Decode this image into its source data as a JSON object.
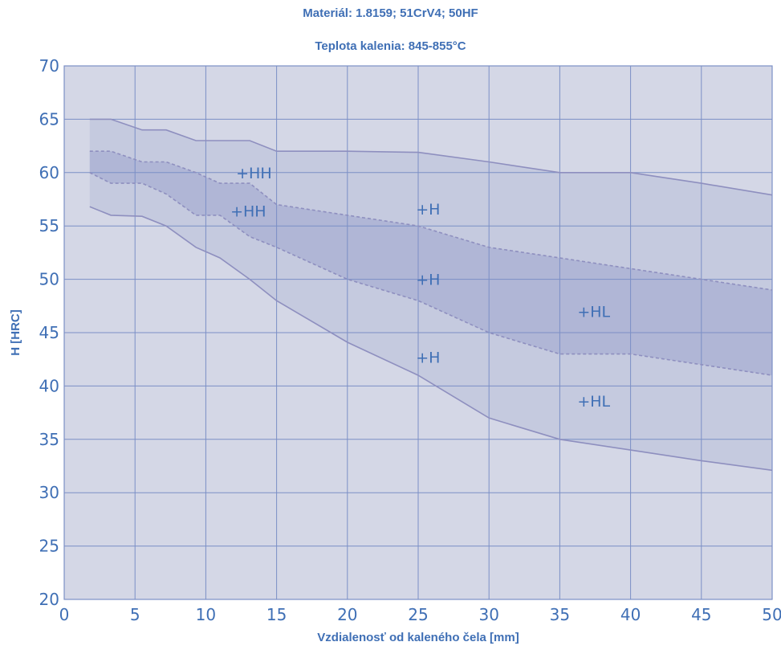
{
  "chart_data": {
    "type": "area",
    "title": "Materiál: 1.8159; 51CrV4; 50HF",
    "subtitle": "Teplota kalenia: 845-855°C",
    "xlabel": "Vzdialenosť od kaleného čela [mm]",
    "ylabel": "H [HRC]",
    "xlim": [
      0,
      50
    ],
    "ylim": [
      20,
      70
    ],
    "xticks": [
      0,
      5,
      10,
      15,
      20,
      25,
      30,
      35,
      40,
      45,
      50
    ],
    "yticks": [
      20,
      25,
      30,
      35,
      40,
      45,
      50,
      55,
      60,
      65,
      70
    ],
    "grid": true,
    "colors": {
      "background": "#d4d7e6",
      "band_light": "#c5cadf",
      "band_dark": "#b0b6d6",
      "grid": "#7b8fc6",
      "line": "#8e8fbf",
      "text": "#3f6fb5"
    },
    "series": [
      {
        "name": "",
        "x": [
          1.8,
          3.3,
          5.5,
          7.2,
          9.3,
          11.0,
          13.1,
          15.0,
          20.0,
          25.0,
          30.0,
          35.0,
          40.0,
          45.0,
          50.0
        ],
        "y": [
          65.0,
          65.0,
          64.0,
          64.0,
          63.0,
          63.0,
          63.0,
          62.0,
          62.0,
          61.9,
          61.0,
          60.0,
          60.0,
          59.0,
          57.9
        ],
        "style": "solid"
      },
      {
        "name": "",
        "x": [
          1.8,
          3.3,
          5.5,
          7.2,
          9.3,
          11.0,
          13.1,
          15.0,
          20.0,
          25.0,
          30.0,
          35.0,
          40.0,
          45.0,
          50.0
        ],
        "y": [
          62.0,
          62.0,
          61.0,
          61.0,
          60.0,
          59.0,
          59.0,
          57.0,
          56.0,
          55.0,
          53.0,
          52.0,
          51.0,
          50.0,
          49.0
        ],
        "style": "dashed"
      },
      {
        "name": "",
        "x": [
          1.8,
          3.3,
          5.5,
          7.2,
          9.3,
          11.0,
          13.1,
          15.0,
          20.0,
          25.0,
          30.0,
          35.0,
          40.0,
          45.0,
          50.0
        ],
        "y": [
          60.0,
          59.0,
          59.0,
          58.0,
          56.0,
          56.0,
          54.0,
          53.0,
          50.0,
          48.0,
          45.0,
          43.0,
          43.0,
          42.0,
          41.0
        ],
        "style": "dashed"
      },
      {
        "name": "",
        "x": [
          1.8,
          3.3,
          5.5,
          7.2,
          9.3,
          11.0,
          13.1,
          15.0,
          20.0,
          25.0,
          30.0,
          35.0,
          40.0,
          45.0,
          50.0
        ],
        "y": [
          56.8,
          56.0,
          55.9,
          55.0,
          53.0,
          52.0,
          50.0,
          48.0,
          44.1,
          41.0,
          37.0,
          35.0,
          34.0,
          33.0,
          32.1
        ],
        "style": "solid"
      }
    ],
    "annotations": [
      {
        "text": "+HH",
        "x": 13.4,
        "y": 60.0
      },
      {
        "text": "+HH",
        "x": 13.0,
        "y": 56.4
      },
      {
        "text": "+H",
        "x": 25.7,
        "y": 56.6
      },
      {
        "text": "+H",
        "x": 25.7,
        "y": 50.0
      },
      {
        "text": "+H",
        "x": 25.7,
        "y": 42.7
      },
      {
        "text": "+HL",
        "x": 37.4,
        "y": 47.0
      },
      {
        "text": "+HL",
        "x": 37.4,
        "y": 38.6
      }
    ]
  }
}
